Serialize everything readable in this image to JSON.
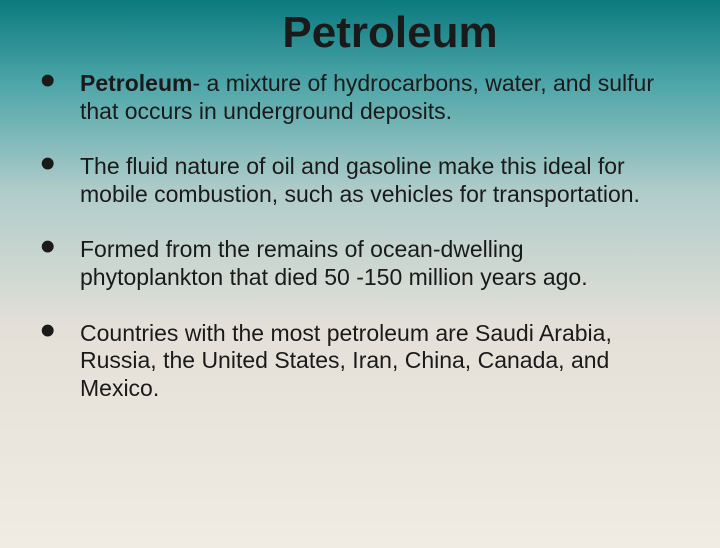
{
  "title": "Petroleum",
  "bullets": [
    {
      "term": "Petroleum",
      "rest": "- a mixture of hydrocarbons, water, and sulfur that occurs in underground deposits."
    },
    {
      "term": "",
      "rest": "The fluid nature of oil and gasoline make this ideal for mobile combustion, such as vehicles for transportation."
    },
    {
      "term": "",
      "rest": "Formed from the remains of ocean-dwelling phytoplankton that died 50 -150 million years ago."
    },
    {
      "term": "",
      "rest": "Countries with the most petroleum are Saudi Arabia, Russia, the United States, Iran, China, Canada, and Mexico."
    }
  ],
  "style": {
    "background_gradient": [
      "#0b7a7e",
      "#4ca5a8",
      "#b0ccca",
      "#e4e0d8",
      "#f0ece4"
    ],
    "title_fontsize": 44,
    "body_fontsize": 23,
    "text_color": "#1a1a1a",
    "bullet_glyph": "•"
  }
}
